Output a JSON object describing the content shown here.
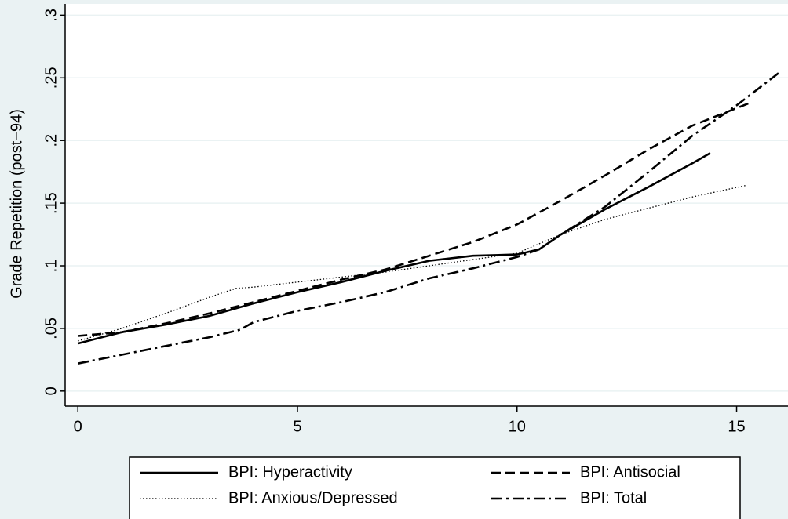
{
  "chart_data": {
    "type": "line",
    "y_label": "Grade Repetition (post−94)",
    "xlim": [
      -0.29,
      16.17
    ],
    "xticks": [
      0,
      5,
      10,
      15
    ],
    "ylim": [
      -0.012,
      0.309
    ],
    "yticks": [
      0,
      {
        "value": 0.05,
        "label": ".05"
      },
      {
        "value": 0.1,
        "label": ".1"
      },
      {
        "value": 0.15,
        "label": ".15"
      },
      {
        "value": 0.2,
        "label": ".2"
      },
      {
        "value": 0.25,
        "label": ".25"
      },
      {
        "value": 0.3,
        "label": ".3"
      }
    ],
    "grid": true,
    "legend": "bottom",
    "series": [
      {
        "name": "BPI: Hyperactivity",
        "color": "#000000",
        "style": "solid",
        "x": [
          0,
          1,
          2,
          3,
          4,
          5,
          6,
          7,
          8,
          9,
          10,
          10.5,
          11,
          12,
          13,
          14,
          14.4
        ],
        "values": [
          0.038,
          0.047,
          0.053,
          0.06,
          0.07,
          0.079,
          0.087,
          0.096,
          0.104,
          0.108,
          0.109,
          0.113,
          0.125,
          0.145,
          0.163,
          0.182,
          0.19
        ]
      },
      {
        "name": "BPI: Antisocial",
        "color": "#000000",
        "style": "dashed",
        "x": [
          0,
          1,
          2,
          3,
          4,
          5,
          6,
          7,
          8,
          9,
          10,
          11,
          12,
          13,
          14,
          15.3
        ],
        "values": [
          0.044,
          0.047,
          0.054,
          0.062,
          0.071,
          0.08,
          0.089,
          0.097,
          0.108,
          0.119,
          0.133,
          0.152,
          0.172,
          0.193,
          0.212,
          0.23
        ]
      },
      {
        "name": "BPI: Anxious/Depressed",
        "color": "#000000",
        "style": "dotted",
        "x": [
          0,
          1,
          2,
          3,
          3.6,
          4,
          5,
          6,
          7,
          8,
          9,
          10,
          11,
          12,
          13,
          14,
          15.2
        ],
        "values": [
          0.04,
          0.05,
          0.062,
          0.075,
          0.082,
          0.083,
          0.087,
          0.091,
          0.095,
          0.1,
          0.105,
          0.11,
          0.125,
          0.137,
          0.146,
          0.155,
          0.164
        ]
      },
      {
        "name": "BPI: Total",
        "color": "#000000",
        "style": "dashdot",
        "x": [
          0,
          1,
          2,
          3,
          3.7,
          4,
          5,
          6,
          7,
          8,
          9,
          10,
          10.5,
          11,
          12,
          13,
          14,
          15,
          16
        ],
        "values": [
          0.022,
          0.029,
          0.036,
          0.043,
          0.049,
          0.055,
          0.064,
          0.071,
          0.079,
          0.09,
          0.098,
          0.107,
          0.113,
          0.125,
          0.147,
          0.175,
          0.204,
          0.228,
          0.255
        ]
      }
    ]
  }
}
